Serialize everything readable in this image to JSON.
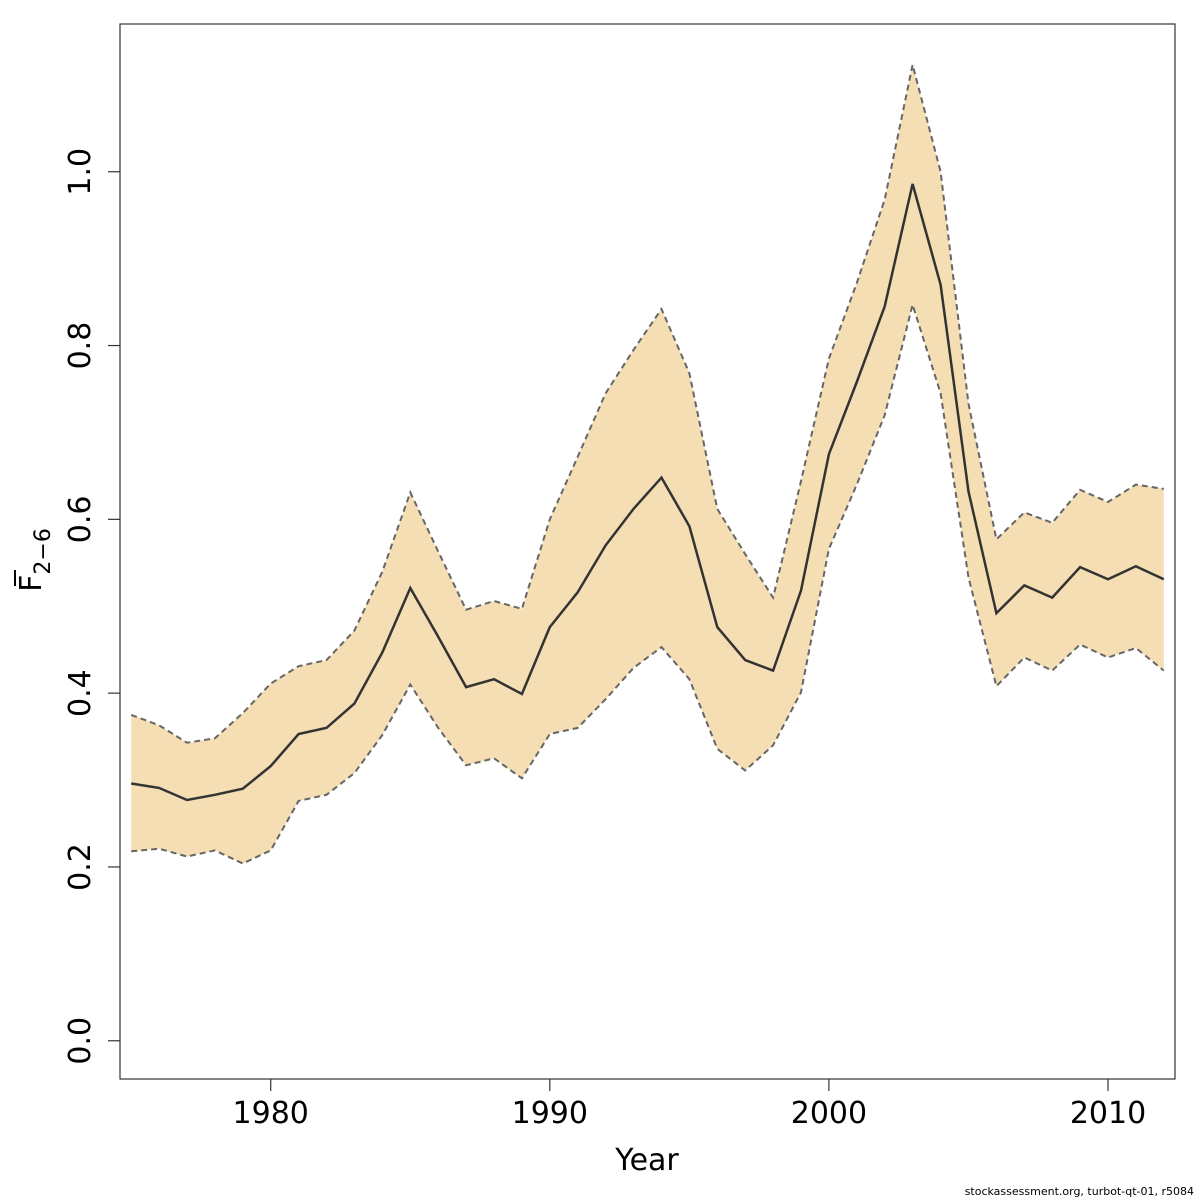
{
  "chart_data": {
    "type": "line",
    "xlabel": "Year",
    "ylabel": {
      "main": "F",
      "subscript": "2−6",
      "overline": true
    },
    "xlim": [
      1974.6,
      2012.4
    ],
    "ylim": [
      -0.044,
      1.17
    ],
    "x_ticks": [
      1980,
      1990,
      2000,
      2010
    ],
    "x_tick_labels": [
      "1980",
      "1990",
      "2000",
      "2010"
    ],
    "y_ticks": [
      0.0,
      0.2,
      0.4,
      0.6,
      0.8,
      1.0
    ],
    "y_tick_labels": [
      "0.0",
      "0.2",
      "0.4",
      "0.6",
      "0.8",
      "1.0"
    ],
    "grid": false,
    "colors": {
      "band": "#f5deb3",
      "line": "#333333",
      "bound": "#666666"
    },
    "x": [
      1975,
      1976,
      1977,
      1978,
      1979,
      1980,
      1981,
      1982,
      1983,
      1984,
      1985,
      1986,
      1987,
      1988,
      1989,
      1990,
      1991,
      1992,
      1993,
      1994,
      1995,
      1996,
      1997,
      1998,
      1999,
      2000,
      2001,
      2002,
      2003,
      2004,
      2005,
      2006,
      2007,
      2008,
      2009,
      2010,
      2011,
      2012
    ],
    "series": [
      {
        "role": "estimate",
        "values": [
          0.296,
          0.291,
          0.277,
          0.283,
          0.29,
          0.316,
          0.353,
          0.36,
          0.388,
          0.447,
          0.521,
          0.465,
          0.407,
          0.416,
          0.399,
          0.476,
          0.516,
          0.57,
          0.612,
          0.648,
          0.592,
          0.476,
          0.438,
          0.426,
          0.518,
          0.675,
          0.758,
          0.845,
          0.986,
          0.87,
          0.632,
          0.492,
          0.524,
          0.51,
          0.545,
          0.531,
          0.546,
          0.531
        ]
      },
      {
        "role": "upper",
        "values": [
          0.375,
          0.363,
          0.343,
          0.348,
          0.377,
          0.411,
          0.431,
          0.438,
          0.472,
          0.54,
          0.631,
          0.563,
          0.496,
          0.506,
          0.497,
          0.6,
          0.672,
          0.745,
          0.795,
          0.842,
          0.768,
          0.612,
          0.56,
          0.51,
          0.644,
          0.785,
          0.872,
          0.968,
          1.123,
          1.0,
          0.733,
          0.577,
          0.608,
          0.596,
          0.634,
          0.62,
          0.64,
          0.635
        ]
      },
      {
        "role": "lower",
        "values": [
          0.218,
          0.221,
          0.212,
          0.219,
          0.204,
          0.219,
          0.276,
          0.283,
          0.308,
          0.352,
          0.41,
          0.36,
          0.317,
          0.325,
          0.302,
          0.353,
          0.36,
          0.393,
          0.429,
          0.453,
          0.416,
          0.336,
          0.311,
          0.34,
          0.401,
          0.566,
          0.64,
          0.72,
          0.847,
          0.745,
          0.533,
          0.408,
          0.441,
          0.426,
          0.456,
          0.441,
          0.452,
          0.426
        ]
      }
    ]
  },
  "footer": "stockassessment.org, turbot-qt-01, r5084"
}
